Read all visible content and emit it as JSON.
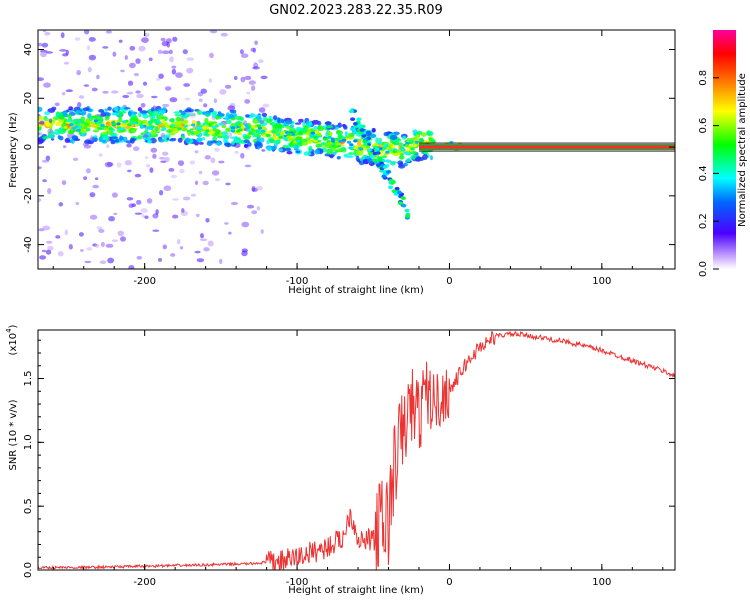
{
  "chart_data": [
    {
      "type": "heatmap",
      "title": "GN02.2023.283.22.35.R09",
      "xlabel": "Height of straight line (km)",
      "ylabel": "Frequency (Hz)",
      "xlim": [
        -270,
        148
      ],
      "ylim": [
        -50,
        48
      ],
      "x_ticks": [
        "-200",
        "-100",
        "0",
        "100"
      ],
      "x_tick_values": [
        -200,
        -100,
        0,
        100
      ],
      "y_ticks": [
        "40",
        "20",
        "0",
        "-20",
        "-40"
      ],
      "y_tick_values": [
        40,
        20,
        0,
        -20,
        -40
      ],
      "colorbar": {
        "label": "Normalized spectral amplitude",
        "ticks": [
          "0.0",
          "0.2",
          "0.4",
          "0.6",
          "0.8"
        ],
        "tick_values": [
          0.0,
          0.2,
          0.4,
          0.6,
          0.8
        ],
        "range": [
          0,
          1
        ]
      },
      "ridge": {
        "x": [
          -265,
          -240,
          -210,
          -180,
          -150,
          -125,
          -110,
          -100,
          -90,
          -80,
          -70,
          -60,
          -50,
          -40,
          -30,
          -20,
          -10,
          0,
          10
        ],
        "y": [
          9,
          9,
          9,
          9,
          8,
          7,
          5,
          4,
          4,
          3,
          2,
          1,
          0,
          -1,
          -1,
          2,
          1,
          0,
          0
        ]
      },
      "tone": {
        "y": 0,
        "x_start": -20,
        "x_end": 148
      }
    },
    {
      "type": "line",
      "xlabel": "Height of straight line (km)",
      "ylabel": "SNR (10 * v/v)",
      "y_scale_label": "(x10",
      "y_scale_exp": "4",
      "xlim": [
        -270,
        148
      ],
      "ylim": [
        0,
        1.88
      ],
      "x_ticks": [
        "-200",
        "-100",
        "0",
        "100"
      ],
      "x_tick_values": [
        -200,
        -100,
        0,
        100
      ],
      "y_ticks": [
        "0.0",
        "0.5",
        "1.0",
        "1.5"
      ],
      "y_tick_values": [
        0.0,
        0.5,
        1.0,
        1.5
      ],
      "series": [
        {
          "color": "#ee3333",
          "x": [
            -270,
            -240,
            -200,
            -160,
            -130,
            -110,
            -100,
            -90,
            -80,
            -70,
            -65,
            -60,
            -55,
            -50,
            -45,
            -40,
            -35,
            -30,
            -25,
            -20,
            -15,
            -10,
            -5,
            0,
            10,
            20,
            30,
            40,
            50,
            60,
            70,
            80,
            90,
            100,
            110,
            120,
            130,
            140,
            148
          ],
          "y": [
            0.02,
            0.02,
            0.03,
            0.04,
            0.05,
            0.07,
            0.1,
            0.14,
            0.18,
            0.25,
            0.45,
            0.25,
            0.22,
            0.25,
            0.3,
            0.4,
            0.9,
            1.1,
            1.3,
            1.2,
            1.4,
            1.3,
            1.35,
            1.4,
            1.6,
            1.75,
            1.83,
            1.85,
            1.84,
            1.82,
            1.8,
            1.78,
            1.75,
            1.72,
            1.68,
            1.64,
            1.6,
            1.56,
            1.52
          ]
        }
      ]
    }
  ]
}
